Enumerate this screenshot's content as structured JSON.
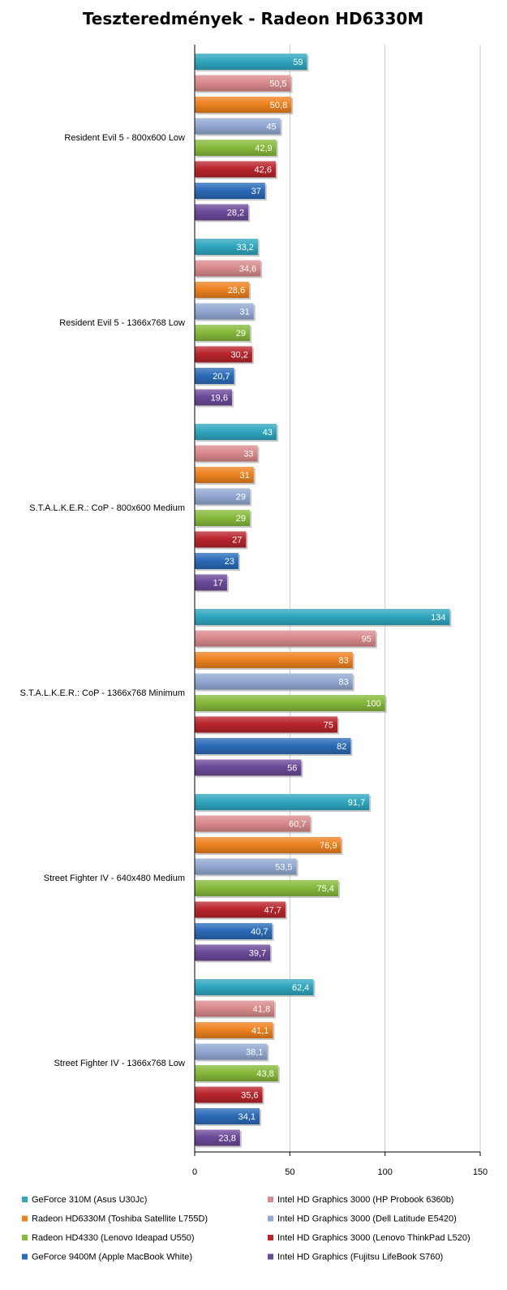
{
  "chart_data": {
    "type": "bar",
    "orientation": "horizontal",
    "title": "Teszteredmények - Radeon HD6330M",
    "xlabel": "",
    "ylabel": "",
    "xlim": [
      0,
      150
    ],
    "ticks": [
      0,
      50,
      100,
      150
    ],
    "grid": true,
    "legend_position": "bottom",
    "categories": [
      "Resident Evil 5 - 800x600 Low",
      "Resident Evil 5 - 1366x768 Low",
      "S.T.A.L.K.E.R.: CoP - 800x600 Medium",
      "S.T.A.L.K.E.R.: CoP - 1366x768 Minimum",
      "Street Fighter IV - 640x480 Medium",
      "Street Fighter IV - 1366x768 Low"
    ],
    "series": [
      {
        "name": "GeForce 310M (Asus U30Jc)",
        "color": "#31a6bf",
        "values": [
          59,
          33.2,
          43,
          134,
          91.7,
          62.4
        ],
        "labels": [
          "59",
          "33,2",
          "43",
          "134",
          "91,7",
          "62,4"
        ]
      },
      {
        "name": "Intel HD Graphics 3000 (HP Probook 6360b)",
        "color": "#d98a8c",
        "values": [
          50.5,
          34.6,
          33,
          95,
          60.7,
          41.8
        ],
        "labels": [
          "50,5",
          "34,6",
          "33",
          "95",
          "60,7",
          "41,8"
        ]
      },
      {
        "name": "Radeon HD6330M (Toshiba Satellite L755D)",
        "color": "#ee8220",
        "values": [
          50.8,
          28.6,
          31,
          83,
          76.9,
          41.1
        ],
        "labels": [
          "50,8",
          "28,6",
          "31",
          "83",
          "76,9",
          "41,1"
        ]
      },
      {
        "name": "Intel HD Graphics 3000 (Dell Latitude E5420)",
        "color": "#93a9d3",
        "values": [
          45,
          31,
          29,
          83,
          53.5,
          38.1
        ],
        "labels": [
          "45",
          "31",
          "29",
          "83",
          "53,5",
          "38,1"
        ]
      },
      {
        "name": "Radeon HD4330 (Lenovo Ideapad U550)",
        "color": "#86ba3c",
        "values": [
          42.9,
          29,
          29,
          100,
          75.4,
          43.8
        ],
        "labels": [
          "42,9",
          "29",
          "29",
          "100",
          "75,4",
          "43,8"
        ]
      },
      {
        "name": "Intel HD Graphics 3000 (Lenovo ThinkPad L520)",
        "color": "#b8262c",
        "values": [
          42.6,
          30.2,
          27,
          75,
          47.7,
          35.6
        ],
        "labels": [
          "42,6",
          "30,2",
          "27",
          "75",
          "47,7",
          "35,6"
        ]
      },
      {
        "name": "GeForce 9400M (Apple MacBook White)",
        "color": "#2c6cb8",
        "values": [
          37,
          20.7,
          23,
          82,
          40.7,
          34.1
        ],
        "labels": [
          "37",
          "20,7",
          "23",
          "82",
          "40,7",
          "34,1"
        ]
      },
      {
        "name": "Intel HD Graphics (Fujitsu LifeBook S760)",
        "color": "#6b4a99",
        "values": [
          28.2,
          19.6,
          17,
          56,
          39.7,
          23.8
        ],
        "labels": [
          "28,2",
          "19,6",
          "17",
          "56",
          "39,7",
          "23,8"
        ]
      }
    ]
  }
}
